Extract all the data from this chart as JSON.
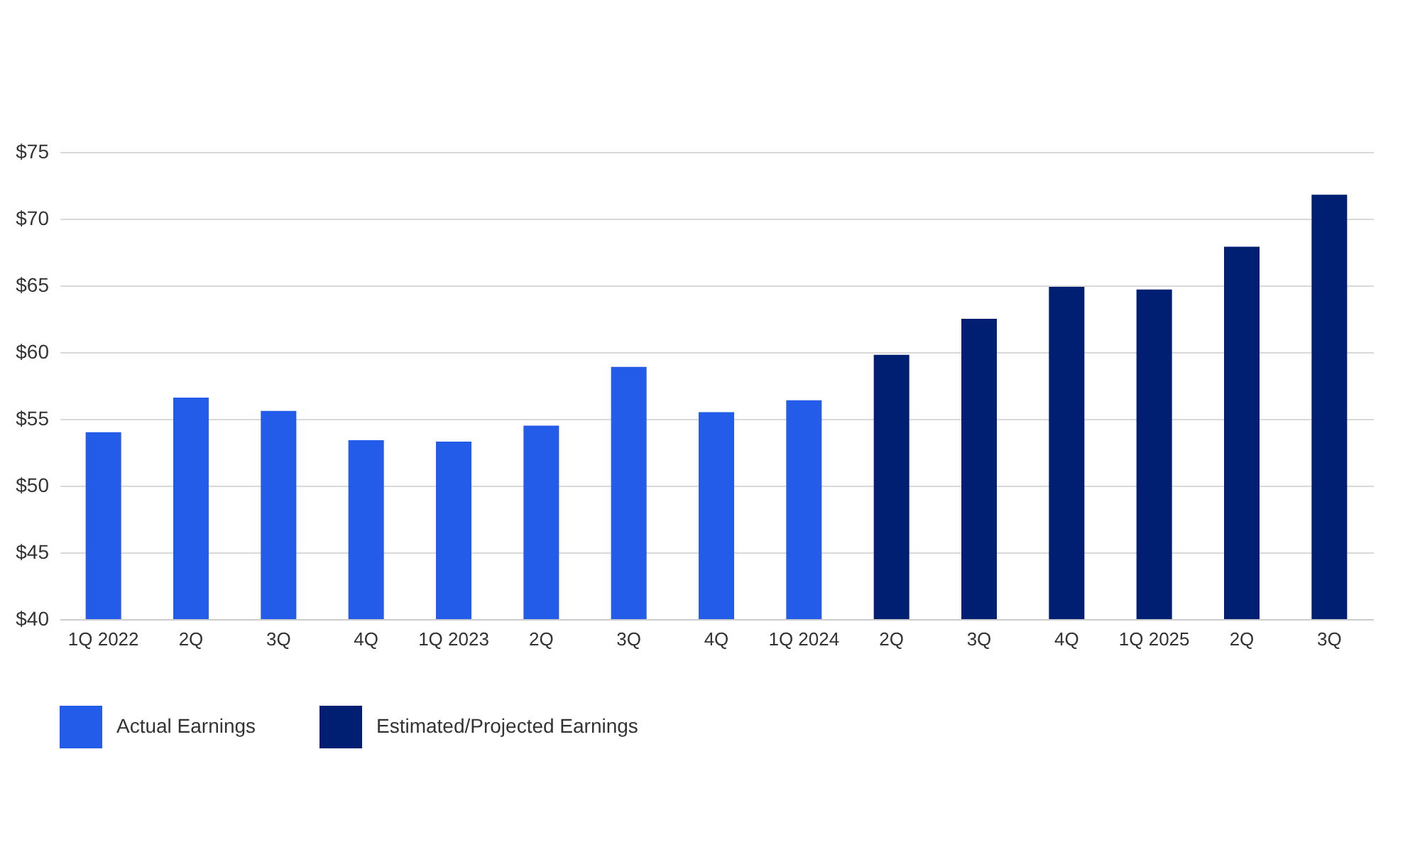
{
  "chart_data": {
    "type": "bar",
    "categories": [
      "1Q 2022",
      "2Q",
      "3Q",
      "4Q",
      "1Q 2023",
      "2Q",
      "3Q",
      "4Q",
      "1Q 2024",
      "2Q",
      "3Q",
      "4Q",
      "1Q 2025",
      "2Q",
      "3Q"
    ],
    "series": [
      {
        "name": "Actual Earnings",
        "color": "#235ce8",
        "values": [
          54.0,
          56.6,
          55.6,
          53.4,
          53.3,
          54.5,
          58.9,
          55.5,
          56.4,
          null,
          null,
          null,
          null,
          null,
          null
        ]
      },
      {
        "name": "Estimated/Projected Earnings",
        "color": "#001f73",
        "values": [
          null,
          null,
          null,
          null,
          null,
          null,
          null,
          null,
          null,
          59.8,
          62.5,
          64.9,
          64.7,
          67.9,
          71.8
        ]
      }
    ],
    "ylim": [
      40,
      75
    ],
    "yticks": [
      {
        "value": 40,
        "label": "$40"
      },
      {
        "value": 45,
        "label": "$45"
      },
      {
        "value": 50,
        "label": "$50"
      },
      {
        "value": 55,
        "label": "$55"
      },
      {
        "value": 60,
        "label": "$60"
      },
      {
        "value": 65,
        "label": "$65"
      },
      {
        "value": 70,
        "label": "$70"
      },
      {
        "value": 75,
        "label": "$75"
      }
    ],
    "grid": "y",
    "legend": "bottom"
  }
}
